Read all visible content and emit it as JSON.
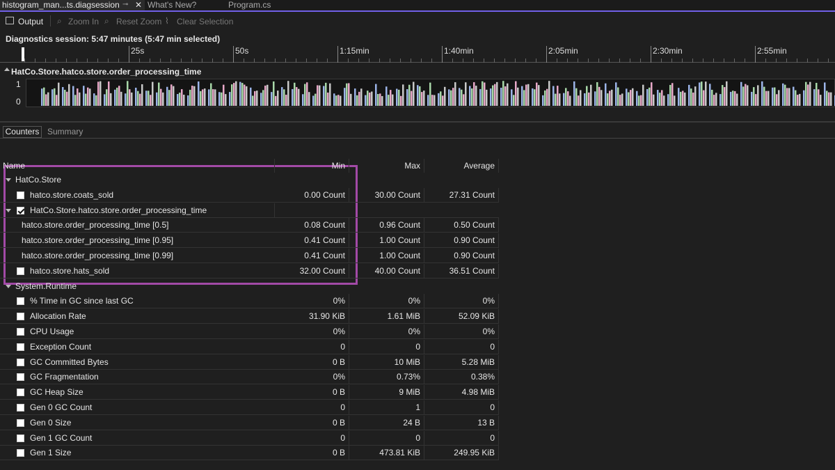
{
  "tabs": [
    "histogram_man...ts.diagsession",
    "What's New?",
    "Program.cs"
  ],
  "toolbar": [
    "Output",
    "Zoom In",
    "Reset Zoom",
    "Clear Selection"
  ],
  "session": "Diagnostics session: 5:47 minutes (5:47 min selected)",
  "ruler": [
    "25s",
    "50s",
    "1:15min",
    "1:40min",
    "2:05min",
    "2:30min",
    "2:55min"
  ],
  "graph": {
    "title": "HatCo.Store.hatco.store.order_processing_time",
    "ylabels": [
      "1",
      "0"
    ]
  },
  "view_tabs": [
    "Counters",
    "Summary"
  ],
  "table": {
    "columns": [
      "Name",
      "Min",
      "Max",
      "Average"
    ],
    "groups": [
      {
        "name": "HatCo.Store",
        "rows": [
          {
            "name": "hatco.store.coats_sold",
            "checked": false,
            "values": [
              "0.00 Count",
              "30.00 Count",
              "27.31 Count"
            ]
          },
          {
            "name": "HatCo.Store.hatco.store.order_processing_time",
            "checked": true,
            "rows": [
              {
                "name": "hatco.store.order_processing_time [0.5]",
                "values": [
                  "0.08 Count",
                  "0.96 Count",
                  "0.50 Count"
                ]
              },
              {
                "name": "hatco.store.order_processing_time [0.95]",
                "values": [
                  "0.41 Count",
                  "1.00 Count",
                  "0.90 Count"
                ]
              },
              {
                "name": "hatco.store.order_processing_time [0.99]",
                "values": [
                  "0.41 Count",
                  "1.00 Count",
                  "0.90 Count"
                ]
              }
            ]
          },
          {
            "name": "hatco.store.hats_sold",
            "checked": false,
            "values": [
              "32.00 Count",
              "40.00 Count",
              "36.51 Count"
            ]
          }
        ]
      },
      {
        "name": "System.Runtime",
        "rows": [
          {
            "name": "% Time in GC since last GC",
            "checked": false,
            "values": [
              "0%",
              "0%",
              "0%"
            ]
          },
          {
            "name": "Allocation Rate",
            "checked": false,
            "values": [
              "31.90 KiB",
              "1.61 MiB",
              "52.09 KiB"
            ]
          },
          {
            "name": "CPU Usage",
            "checked": false,
            "values": [
              "0%",
              "0%",
              "0%"
            ]
          },
          {
            "name": "Exception Count",
            "checked": false,
            "values": [
              "0",
              "0",
              "0"
            ]
          },
          {
            "name": "GC Committed Bytes",
            "checked": false,
            "values": [
              "0 B",
              "10 MiB",
              "5.28 MiB"
            ]
          },
          {
            "name": "GC Fragmentation",
            "checked": false,
            "values": [
              "0%",
              "0.73%",
              "0.38%"
            ]
          },
          {
            "name": "GC Heap Size",
            "checked": false,
            "values": [
              "0 B",
              "9 MiB",
              "4.98 MiB"
            ]
          },
          {
            "name": "Gen 0 GC Count",
            "checked": false,
            "values": [
              "0",
              "1",
              "0"
            ]
          },
          {
            "name": "Gen 0 Size",
            "checked": false,
            "values": [
              "0 B",
              "24 B",
              "13 B"
            ]
          },
          {
            "name": "Gen 1 GC Count",
            "checked": false,
            "values": [
              "0",
              "0",
              "0"
            ]
          },
          {
            "name": "Gen 1 Size",
            "checked": false,
            "values": [
              "0 B",
              "473.81 KiB",
              "249.95 KiB"
            ]
          }
        ]
      }
    ]
  }
}
